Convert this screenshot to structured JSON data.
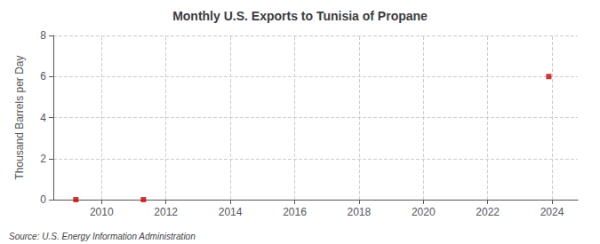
{
  "chart_data": {
    "type": "scatter",
    "title": "Monthly U.S. Exports to Tunisia of Propane",
    "ylabel": "Thousand Barrels per Day",
    "annotations": [
      "Source: U.S. Energy Information Administration"
    ],
    "x": [
      2009.2,
      2011.3,
      2023.9
    ],
    "values": [
      0.0,
      0.0,
      6.0
    ],
    "color": "#cc0000",
    "marker": "square",
    "xlim": [
      2008.5,
      2024.8
    ],
    "xticks": [
      2010,
      2012,
      2014,
      2016,
      2018,
      2020,
      2022,
      2024
    ],
    "ylim": [
      0,
      8
    ],
    "yticks": [
      0,
      2,
      4,
      6,
      8
    ],
    "grid": true
  }
}
